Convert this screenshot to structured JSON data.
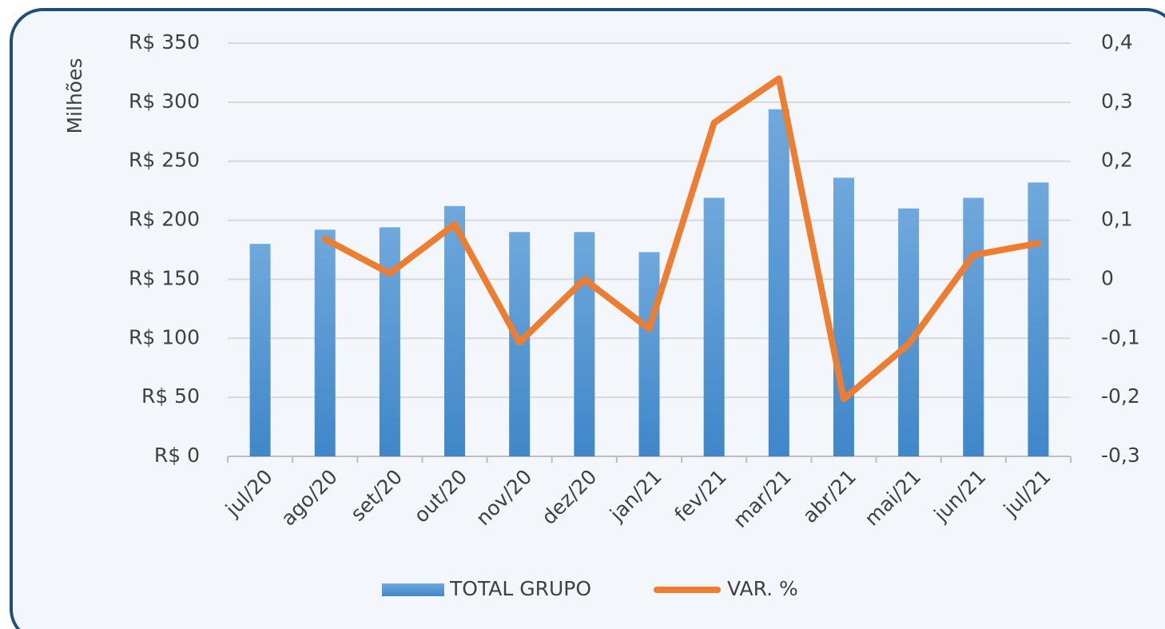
{
  "chart_data": {
    "type": "bar-line",
    "y_axis_label": "Milhões",
    "categories": [
      "jul/20",
      "ago/20",
      "set/20",
      "out/20",
      "nov/20",
      "dez/20",
      "jan/21",
      "fev/21",
      "mar/21",
      "abr/21",
      "mai/21",
      "jun/21",
      "jul/21"
    ],
    "series": [
      {
        "name": "TOTAL GRUPO",
        "type": "bar",
        "color": "#5b9bd5",
        "axis": "y",
        "values": [
          180,
          192,
          194,
          212,
          190,
          190,
          173,
          219,
          294,
          236,
          210,
          219,
          232
        ]
      },
      {
        "name": "VAR. %",
        "type": "line",
        "color": "#ed7d31",
        "axis": "y2",
        "values": [
          null,
          0.068,
          0.01,
          0.093,
          -0.107,
          0.0,
          -0.084,
          0.265,
          0.34,
          -0.203,
          -0.11,
          0.041,
          0.061
        ]
      }
    ],
    "ylim": [
      0,
      350
    ],
    "yticks": [
      {
        "value": 0,
        "label": "R$ 0"
      },
      {
        "value": 50,
        "label": "R$ 50"
      },
      {
        "value": 100,
        "label": "R$ 100"
      },
      {
        "value": 150,
        "label": "R$ 150"
      },
      {
        "value": 200,
        "label": "R$ 200"
      },
      {
        "value": 250,
        "label": "R$ 250"
      },
      {
        "value": 300,
        "label": "R$ 300"
      },
      {
        "value": 350,
        "label": "R$ 350"
      }
    ],
    "y2lim": [
      -0.3,
      0.4
    ],
    "y2ticks": [
      {
        "value": -0.3,
        "label": "-0,3"
      },
      {
        "value": -0.2,
        "label": "-0,2"
      },
      {
        "value": -0.1,
        "label": "-0,1"
      },
      0,
      {
        "value": 0.1,
        "label": "0,1"
      },
      {
        "value": 0.2,
        "label": "0,2"
      },
      {
        "value": 0.3,
        "label": "0,3"
      },
      {
        "value": 0.4,
        "label": "0,4"
      }
    ],
    "grid": true,
    "legend": "bottom"
  }
}
